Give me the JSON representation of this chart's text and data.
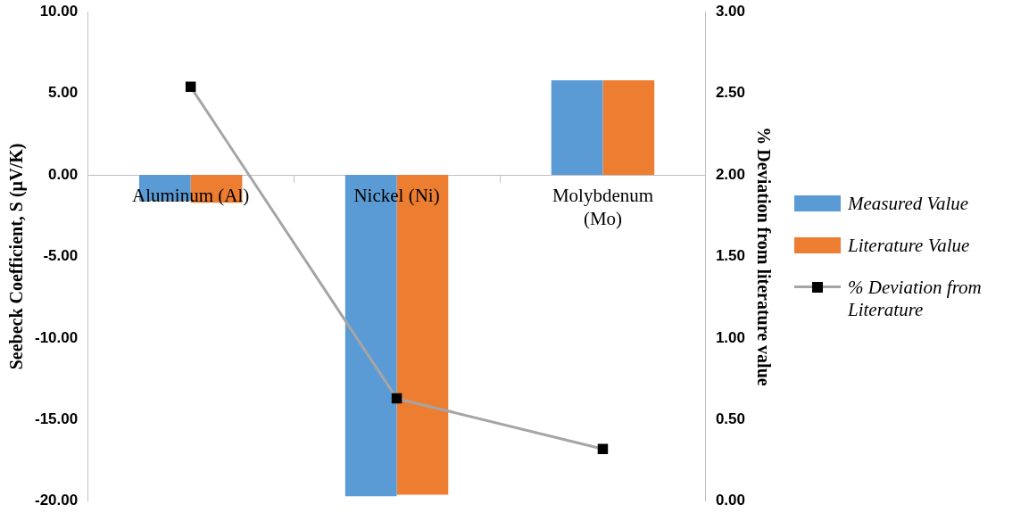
{
  "chart_data": {
    "type": "bar",
    "ylabel": "Seebeck Coefficient, S (µV/K)",
    "y2label": "% Deviation from literature value",
    "categories": [
      "Aluminum (Al)",
      "Nickel (Ni)",
      "Molybdenum (Mo)"
    ],
    "series": [
      {
        "name": "Measured Value",
        "color": "#5b9bd5",
        "values": [
          -1.6,
          -19.7,
          5.8
        ]
      },
      {
        "name": "Literature Value",
        "color": "#ed7d31",
        "values": [
          -1.7,
          -19.6,
          5.8
        ]
      },
      {
        "name": "% Deviation from Literature",
        "type": "line",
        "axis": "y2",
        "color": "#a5a5a5",
        "marker": "square",
        "values": [
          2.54,
          0.63,
          0.32
        ]
      }
    ],
    "ylim": [
      -20,
      10
    ],
    "yticks": [
      {
        "value": -20,
        "label": "-20.00"
      },
      {
        "value": -15,
        "label": "-15.00"
      },
      {
        "value": -10,
        "label": "-10.00"
      },
      {
        "value": -5,
        "label": "-5.00"
      },
      {
        "value": 0,
        "label": "0.00"
      },
      {
        "value": 5,
        "label": "5.00"
      },
      {
        "value": 10,
        "label": "10.00"
      }
    ],
    "y2lim": [
      0,
      3
    ],
    "y2ticks": [
      {
        "value": 0,
        "label": "0.00"
      },
      {
        "value": 0.5,
        "label": "0.50"
      },
      {
        "value": 1,
        "label": "1.00"
      },
      {
        "value": 1.5,
        "label": "1.50"
      },
      {
        "value": 2,
        "label": "2.00"
      },
      {
        "value": 2.5,
        "label": "2.50"
      },
      {
        "value": 3,
        "label": "3.00"
      }
    ],
    "grid": false,
    "legend": "right"
  }
}
